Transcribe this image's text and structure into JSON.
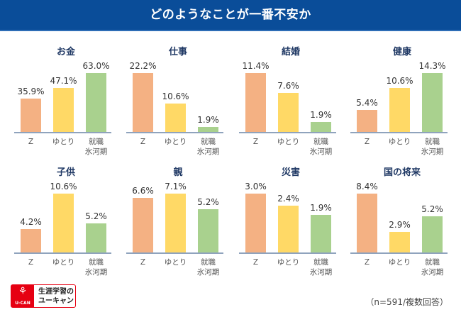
{
  "header": {
    "title": "どのようなことが一番不安か"
  },
  "colors": {
    "Z": "#f4b183",
    "ゆとり": "#ffd966",
    "就職氷河期": "#a9d18e",
    "axis": "#8fa3bd",
    "title_bar": "#0a4d99",
    "panel_title": "#1f3864"
  },
  "chart_data": [
    {
      "type": "bar",
      "title": "お金",
      "categories": [
        "Z",
        "ゆとり",
        "就職\n氷河期"
      ],
      "values": [
        35.9,
        47.1,
        63.0
      ],
      "labels": [
        "35.9%",
        "47.1%",
        "63.0%"
      ],
      "unit": "%"
    },
    {
      "type": "bar",
      "title": "仕事",
      "categories": [
        "Z",
        "ゆとり",
        "就職\n氷河期"
      ],
      "values": [
        22.2,
        10.6,
        1.9
      ],
      "labels": [
        "22.2%",
        "10.6%",
        "1.9%"
      ],
      "unit": "%"
    },
    {
      "type": "bar",
      "title": "結婚",
      "categories": [
        "Z",
        "ゆとり",
        "就職\n氷河期"
      ],
      "values": [
        11.4,
        7.6,
        1.9
      ],
      "labels": [
        "11.4%",
        "7.6%",
        "1.9%"
      ],
      "unit": "%"
    },
    {
      "type": "bar",
      "title": "健康",
      "categories": [
        "Z",
        "ゆとり",
        "就職\n氷河期"
      ],
      "values": [
        5.4,
        10.6,
        14.3
      ],
      "labels": [
        "5.4%",
        "10.6%",
        "14.3%"
      ],
      "unit": "%"
    },
    {
      "type": "bar",
      "title": "子供",
      "categories": [
        "Z",
        "ゆとり",
        "就職\n氷河期"
      ],
      "values": [
        4.2,
        10.6,
        5.2
      ],
      "labels": [
        "4.2%",
        "10.6%",
        "5.2%"
      ],
      "unit": "%"
    },
    {
      "type": "bar",
      "title": "親",
      "categories": [
        "Z",
        "ゆとり",
        "就職\n氷河期"
      ],
      "values": [
        6.6,
        7.1,
        5.2
      ],
      "labels": [
        "6.6%",
        "7.1%",
        "5.2%"
      ],
      "unit": "%"
    },
    {
      "type": "bar",
      "title": "災害",
      "categories": [
        "Z",
        "ゆとり",
        "就職\n氷河期"
      ],
      "values": [
        3.0,
        2.4,
        1.9
      ],
      "labels": [
        "3.0%",
        "2.4%",
        "1.9%"
      ],
      "unit": "%"
    },
    {
      "type": "bar",
      "title": "国の将来",
      "categories": [
        "Z",
        "ゆとり",
        "就職\n氷河期"
      ],
      "values": [
        8.4,
        2.9,
        5.2
      ],
      "labels": [
        "8.4%",
        "2.9%",
        "5.2%"
      ],
      "unit": "%"
    }
  ],
  "footer": {
    "logo_mark": "U-CAN",
    "logo_glyph": "⚘",
    "logo_text": "生涯学習の\nユーキャン",
    "note": "（n=591/複数回答）"
  }
}
